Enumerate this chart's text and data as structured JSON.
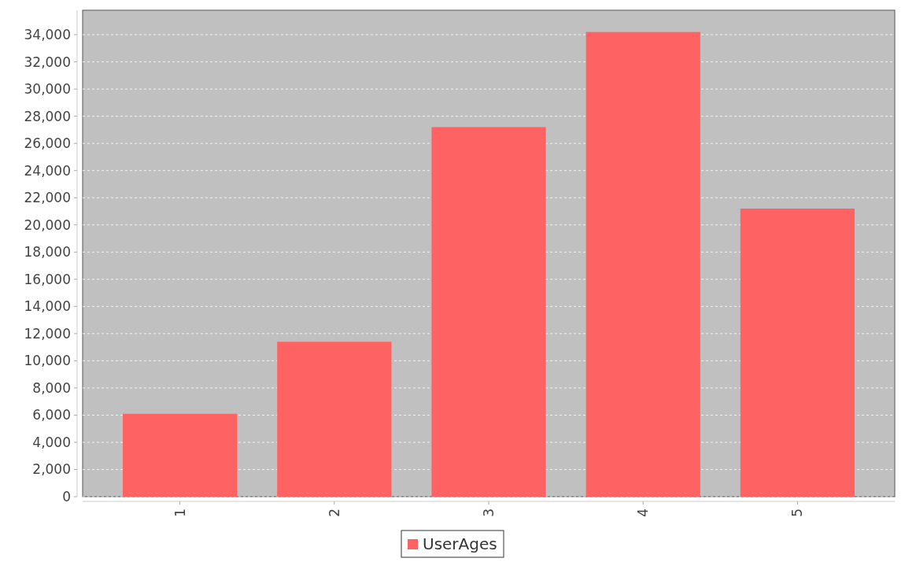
{
  "chart_data": {
    "type": "bar",
    "categories": [
      "1",
      "2",
      "3",
      "4",
      "5"
    ],
    "series": [
      {
        "name": "UserAges",
        "color": "#ff6262",
        "values": [
          6100,
          11400,
          27200,
          34200,
          21200
        ]
      }
    ],
    "ylim": [
      0,
      35800
    ],
    "yticks": [
      0,
      {
        "value": 2000,
        "label": "2,000"
      },
      {
        "value": 4000,
        "label": "4,000"
      },
      {
        "value": 6000,
        "label": "6,000"
      },
      {
        "value": 8000,
        "label": "8,000"
      },
      {
        "value": 10000,
        "label": "10,000"
      },
      {
        "value": 12000,
        "label": "12,000"
      },
      {
        "value": 14000,
        "label": "14,000"
      },
      {
        "value": 16000,
        "label": "16,000"
      },
      {
        "value": 18000,
        "label": "18,000"
      },
      {
        "value": 20000,
        "label": "20,000"
      },
      {
        "value": 22000,
        "label": "22,000"
      },
      {
        "value": 24000,
        "label": "24,000"
      },
      {
        "value": 26000,
        "label": "26,000"
      },
      {
        "value": 28000,
        "label": "28,000"
      },
      {
        "value": 30000,
        "label": "30,000"
      },
      {
        "value": 32000,
        "label": "32,000"
      },
      {
        "value": 34000,
        "label": "34,000"
      }
    ],
    "grid": "y",
    "legend": "bottom"
  }
}
